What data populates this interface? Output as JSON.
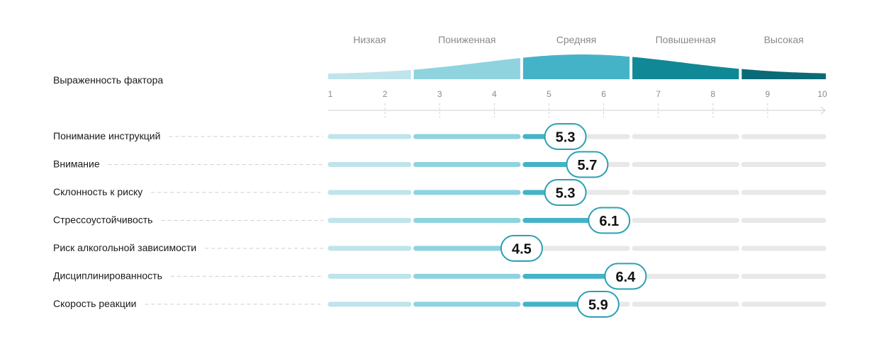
{
  "chart_data": {
    "type": "bar",
    "header_label": "Выраженность фактора",
    "zones": [
      {
        "name": "Низкая",
        "from": 1,
        "to": 2.5,
        "color": "#bfe4eb",
        "bar_color": "#bfe4eb",
        "curve_level": 0.35
      },
      {
        "name": "Пониженная",
        "from": 2.5,
        "to": 4.5,
        "color": "#8fd3df",
        "bar_color": "#8fd3df",
        "curve_level": 0.9
      },
      {
        "name": "Средняя",
        "from": 4.5,
        "to": 6.5,
        "color": "#45b3c7",
        "bar_color": "#45b3c7",
        "curve_level": 1.0
      },
      {
        "name": "Повышенная",
        "from": 6.5,
        "to": 8.5,
        "color": "#108896",
        "bar_color": "#e8e8e8",
        "curve_level": 0.55
      },
      {
        "name": "Высокая",
        "from": 8.5,
        "to": 10,
        "color": "#0a6b76",
        "bar_color": "#e8e8e8",
        "curve_level": 0.2
      }
    ],
    "ticks": [
      "1",
      "2",
      "3",
      "4",
      "5",
      "6",
      "7",
      "8",
      "9",
      "10"
    ],
    "xlim": [
      1,
      10
    ],
    "unfilled_color": "#e8e8e8",
    "bubble_border_colors": {
      "Пониженная": "#9fd8e2",
      "Средняя": "#2aa0b4"
    },
    "categories": [
      "Понимание инструкций",
      "Внимание",
      "Склонность к риску",
      "Стрессоустойчивость",
      "Риск алкогольной зависимости",
      "Дисциплинированность",
      "Скорость реакции"
    ],
    "values": [
      5.3,
      5.7,
      5.3,
      6.1,
      4.5,
      6.4,
      5.9
    ],
    "value_labels": [
      "5.3",
      "5.7",
      "5.3",
      "6.1",
      "4.5",
      "6.4",
      "5.9"
    ]
  }
}
